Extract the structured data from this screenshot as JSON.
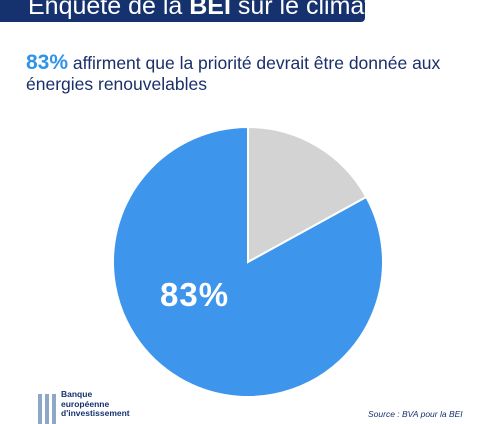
{
  "banner": {
    "prefix": "Enquête de la ",
    "brand": "BEI",
    "suffix": " sur le climat"
  },
  "headline": {
    "percent": "83%",
    "text": " affirment que la priorité devrait être donnée aux énergies renouvelables"
  },
  "chart_data": {
    "type": "pie",
    "slices": [
      {
        "value": 83,
        "color": "#3d95ec"
      },
      {
        "value": 17,
        "color": "#d3d3d3"
      }
    ],
    "data_labels": [
      "83%"
    ]
  },
  "logo": {
    "lines": [
      "Banque",
      "européenne",
      "d'investissement"
    ]
  },
  "source": "Source : BVA pour la BEI"
}
